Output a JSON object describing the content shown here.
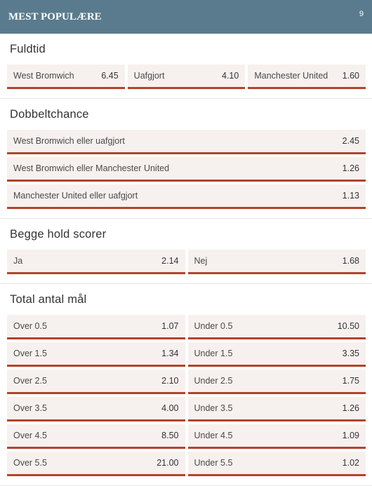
{
  "header": {
    "title": "MEST POPULÆRE",
    "count": "9"
  },
  "sections": [
    {
      "title": "Fuldtid",
      "rows": [
        [
          {
            "label": "West Bromwich",
            "odds": "6.45"
          },
          {
            "label": "Uafgjort",
            "odds": "4.10"
          },
          {
            "label": "Manchester United",
            "odds": "1.60"
          }
        ]
      ]
    },
    {
      "title": "Dobbeltchance",
      "rows": [
        [
          {
            "label": "West Bromwich eller uafgjort",
            "odds": "2.45"
          }
        ],
        [
          {
            "label": "West Bromwich eller Manchester United",
            "odds": "1.26"
          }
        ],
        [
          {
            "label": "Manchester United eller uafgjort",
            "odds": "1.13"
          }
        ]
      ]
    },
    {
      "title": "Begge hold scorer",
      "rows": [
        [
          {
            "label": "Ja",
            "odds": "2.14"
          },
          {
            "label": "Nej",
            "odds": "1.68"
          }
        ]
      ]
    },
    {
      "title": "Total antal mål",
      "rows": [
        [
          {
            "label": "Over 0.5",
            "odds": "1.07"
          },
          {
            "label": "Under 0.5",
            "odds": "10.50"
          }
        ],
        [
          {
            "label": "Over 1.5",
            "odds": "1.34"
          },
          {
            "label": "Under 1.5",
            "odds": "3.35"
          }
        ],
        [
          {
            "label": "Over 2.5",
            "odds": "2.10"
          },
          {
            "label": "Under 2.5",
            "odds": "1.75"
          }
        ],
        [
          {
            "label": "Over 3.5",
            "odds": "4.00"
          },
          {
            "label": "Under 3.5",
            "odds": "1.26"
          }
        ],
        [
          {
            "label": "Over 4.5",
            "odds": "8.50"
          },
          {
            "label": "Under 4.5",
            "odds": "1.09"
          }
        ],
        [
          {
            "label": "Over 5.5",
            "odds": "21.00"
          },
          {
            "label": "Under 5.5",
            "odds": "1.02"
          }
        ]
      ]
    }
  ]
}
